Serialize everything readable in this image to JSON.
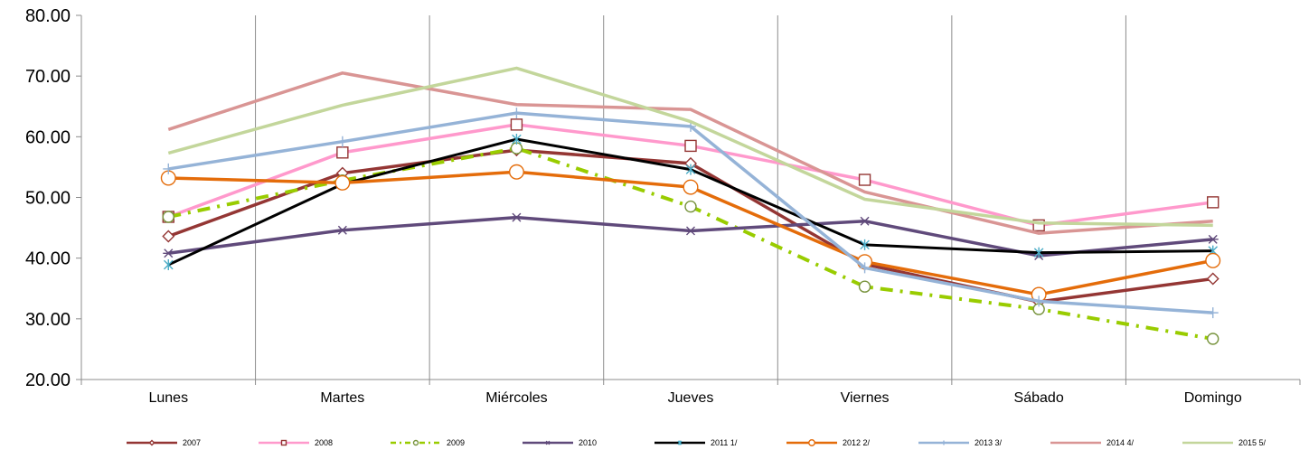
{
  "chart_data": {
    "type": "line",
    "title": "",
    "xlabel": "",
    "ylabel": "",
    "ylim": [
      20,
      80
    ],
    "y_ticks": [
      "20.00",
      "30.00",
      "40.00",
      "50.00",
      "60.00",
      "70.00",
      "80.00"
    ],
    "categories": [
      "Lunes",
      "Martes",
      "Miércoles",
      "Jueves",
      "Viernes",
      "Sábado",
      "Domingo"
    ],
    "grid": "vertical category separators",
    "legend_position": "bottom",
    "series": [
      {
        "name": "2007",
        "color": "#943634",
        "dash": "solid",
        "marker": "diamond",
        "values": [
          43.6,
          54.0,
          57.8,
          55.6,
          39.0,
          32.8,
          36.6
        ]
      },
      {
        "name": "2008",
        "color": "#ff99cc",
        "dash": "solid",
        "marker": "square",
        "values": [
          46.8,
          57.4,
          62.0,
          58.5,
          52.9,
          45.4,
          49.2
        ]
      },
      {
        "name": "2009",
        "color": "#99cc00",
        "dash": "dashdot",
        "marker": "circle-diamond",
        "values": [
          46.8,
          52.8,
          58.1,
          48.5,
          35.3,
          31.6,
          26.7
        ]
      },
      {
        "name": "2010",
        "color": "#604a7b",
        "dash": "solid",
        "marker": "star",
        "values": [
          40.8,
          44.6,
          46.7,
          44.5,
          46.1,
          40.4,
          43.1
        ]
      },
      {
        "name": "2011 1/",
        "color": "#000000",
        "dash": "solid",
        "marker": "asterisk",
        "values": [
          38.9,
          52.2,
          59.6,
          54.6,
          42.2,
          40.9,
          41.2
        ]
      },
      {
        "name": "2012 2/",
        "color": "#e46c0a",
        "dash": "solid",
        "marker": "circle",
        "values": [
          53.2,
          52.4,
          54.2,
          51.7,
          39.4,
          34.0,
          39.6
        ]
      },
      {
        "name": "2013 3/",
        "color": "#95b3d7",
        "dash": "solid",
        "marker": "plus",
        "values": [
          54.7,
          59.2,
          63.9,
          61.7,
          38.4,
          32.9,
          31.0
        ]
      },
      {
        "name": "2014 4/",
        "color": "#d99594",
        "dash": "solid",
        "marker": "none",
        "values": [
          61.2,
          70.5,
          65.3,
          64.5,
          50.9,
          44.1,
          46.1
        ]
      },
      {
        "name": "2015 5/",
        "color": "#c3d69b",
        "dash": "solid",
        "marker": "none",
        "values": [
          57.3,
          65.2,
          71.3,
          62.5,
          49.7,
          45.8,
          45.4
        ]
      }
    ]
  }
}
